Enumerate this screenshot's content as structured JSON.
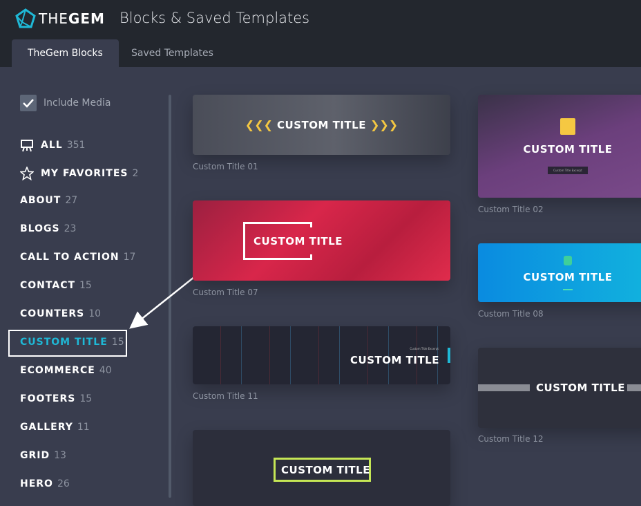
{
  "header": {
    "brand_thin": "THE",
    "brand_bold": "GEM",
    "title": "Blocks & Saved Templates",
    "brand_color": "#1fb8d6"
  },
  "tabs": [
    {
      "label": "TheGem Blocks",
      "active": true
    },
    {
      "label": "Saved Templates",
      "active": false
    }
  ],
  "sidebar": {
    "include_media": {
      "label": "Include Media",
      "checked": true
    },
    "categories": [
      {
        "name": "ALL",
        "count": "351",
        "icon": "presentation-board-icon"
      },
      {
        "name": "MY FAVORITES",
        "count": "2",
        "icon": "star-icon"
      },
      {
        "name": "ABOUT",
        "count": "27"
      },
      {
        "name": "BLOGS",
        "count": "23"
      },
      {
        "name": "CALL TO ACTION",
        "count": "17"
      },
      {
        "name": "CONTACT",
        "count": "15"
      },
      {
        "name": "COUNTERS",
        "count": "10"
      },
      {
        "name": "CUSTOM TITLE",
        "count": "15",
        "selected": true
      },
      {
        "name": "ECOMMERCE",
        "count": "40"
      },
      {
        "name": "FOOTERS",
        "count": "15"
      },
      {
        "name": "GALLERY",
        "count": "11"
      },
      {
        "name": "GRID",
        "count": "13"
      },
      {
        "name": "HERO",
        "count": "26"
      }
    ]
  },
  "templates": [
    {
      "preview_text": "CUSTOM TITLE",
      "label": "Custom Title 01"
    },
    {
      "preview_text": "CUSTOM TITLE",
      "label": "Custom Title 02",
      "excerpt": "Custom Title Excerpt"
    },
    {
      "preview_text": "CUSTOM TITLE",
      "label": "Custom Title 07"
    },
    {
      "preview_text": "CUSTOM TITLE",
      "label": "Custom Title 08"
    },
    {
      "preview_text": "CUSTOM TITLE",
      "label": "Custom Title 11",
      "excerpt": "Custom Title Excerpt"
    },
    {
      "preview_text": "CUSTOM TITLE",
      "label": "Custom Title 12"
    },
    {
      "preview_text": "CUSTOM TITLE"
    }
  ]
}
